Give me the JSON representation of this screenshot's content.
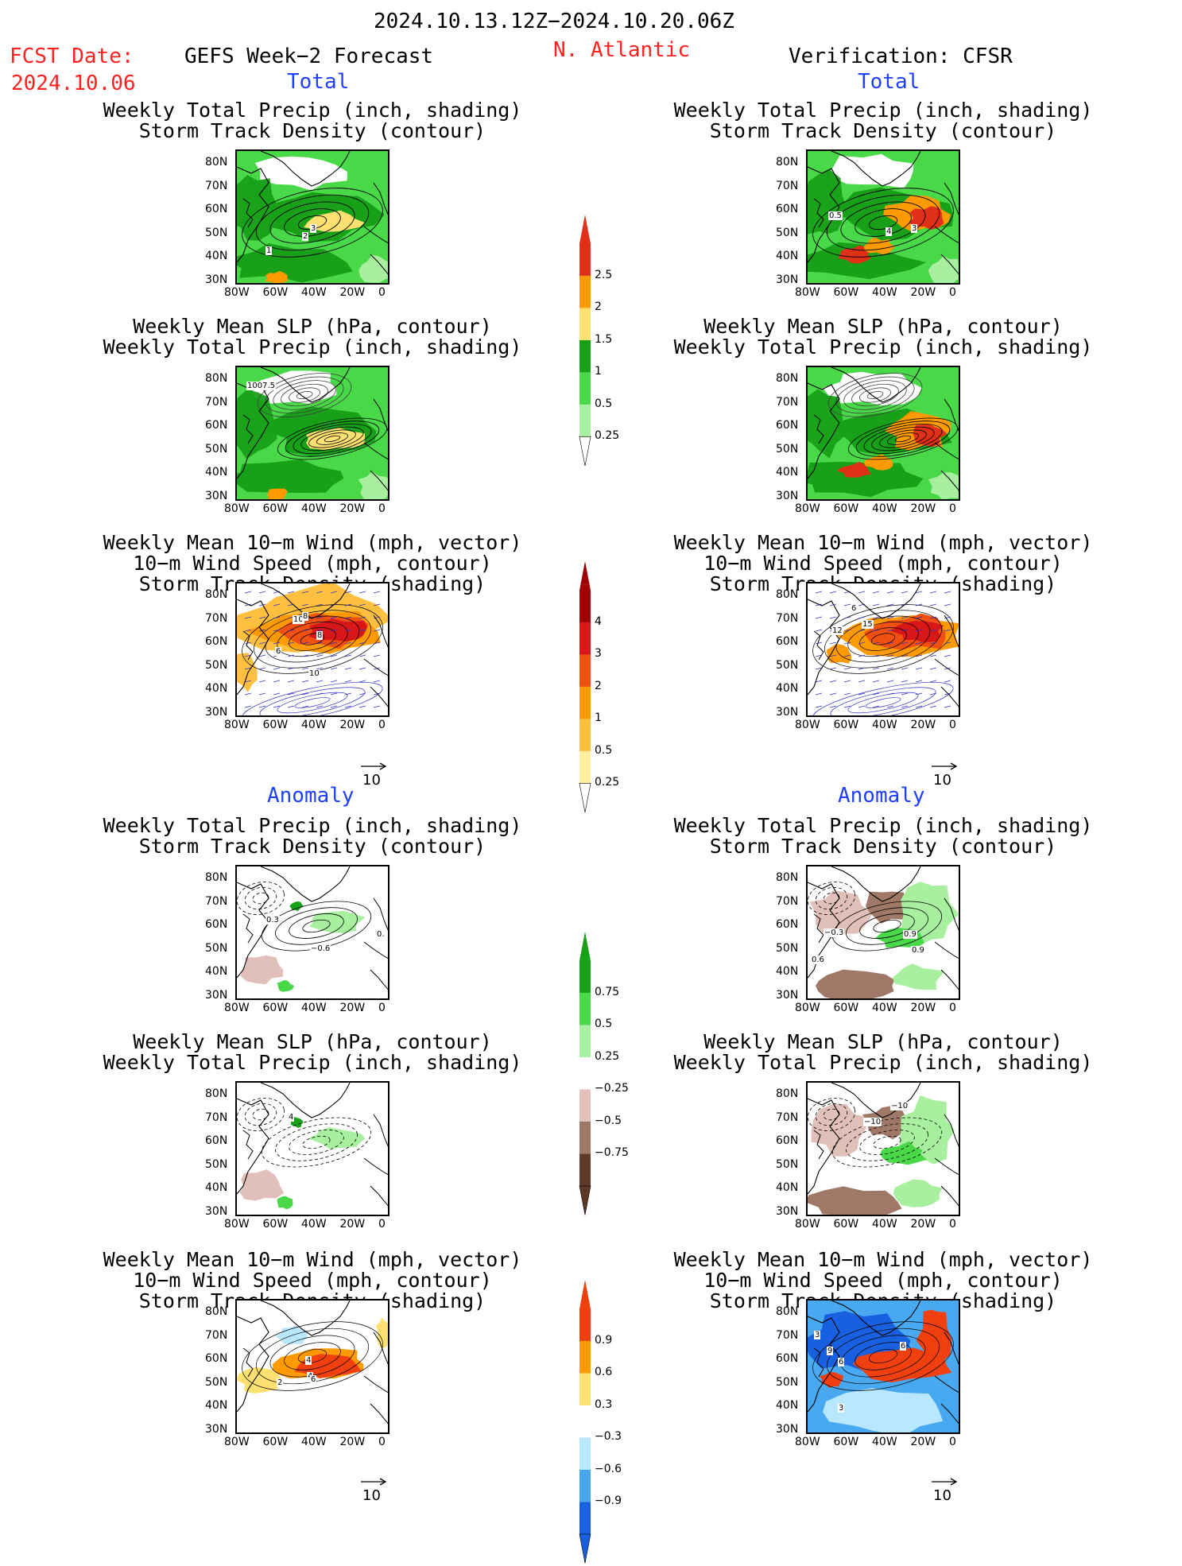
{
  "header": {
    "date_range": "2024.10.13.12Z−2024.10.20.06Z",
    "fcst_label": "FCST Date:",
    "fcst_date": "2024.10.06",
    "model_title": "GEFS Week−2 Forecast",
    "region": "N. Atlantic",
    "verification": "Verification: CFSR"
  },
  "sections": {
    "total": "Total",
    "anomaly": "Anomaly"
  },
  "titles": {
    "precip_track": [
      "Weekly Total Precip (inch, shading)",
      "Storm Track Density (contour)"
    ],
    "slp_precip": [
      "Weekly Mean SLP (hPa, contour)",
      "Weekly Total Precip (inch, shading)"
    ],
    "wind_track": [
      "Weekly Mean 10−m Wind (mph, vector)",
      "10−m Wind Speed (mph, contour)",
      "Storm Track Density (shading)"
    ]
  },
  "axes": {
    "lat_ticks": [
      "80N",
      "70N",
      "60N",
      "50N",
      "40N",
      "30N"
    ],
    "lon_ticks": [
      "80W",
      "60W",
      "40W",
      "20W",
      "0"
    ]
  },
  "vector_ref": "10",
  "colorbars": {
    "precip_total": {
      "labels": [
        "2.5",
        "2",
        "1.5",
        "1",
        "0.5",
        "0.25"
      ],
      "colors": [
        "#e03018",
        "#ff9a00",
        "#ffe070",
        "#18a018",
        "#48d848",
        "#a8f0a0"
      ]
    },
    "storm_total": {
      "labels": [
        "4",
        "3",
        "2",
        "1",
        "0.5",
        "0.25"
      ],
      "colors": [
        "#a00000",
        "#d81818",
        "#f05010",
        "#ff9a00",
        "#ffc040",
        "#fff0a0"
      ]
    },
    "precip_anom": {
      "labels": [
        "0.75",
        "0.5",
        "0.25",
        "−0.25",
        "−0.5",
        "−0.75"
      ],
      "colors": [
        "#18a018",
        "#48d848",
        "#a8f0a0",
        "#ffffff",
        "#e0c0b8",
        "#a07868",
        "#603828"
      ]
    },
    "storm_anom": {
      "labels": [
        "0.9",
        "0.6",
        "0.3",
        "−0.3",
        "−0.6",
        "−0.9"
      ],
      "colors": [
        "#f04010",
        "#ff9a00",
        "#ffe070",
        "#ffffff",
        "#b8e8ff",
        "#48a8f0",
        "#1860e0"
      ]
    }
  },
  "contour_labels": {
    "fc_precip_total": [
      "3",
      "2",
      "1"
    ],
    "fc_slp_total": [
      "1007.5"
    ],
    "fc_wind_total": [
      "10",
      "8",
      "8",
      "6",
      "10"
    ],
    "ob_precip_total": [
      "0.5",
      "4",
      "3"
    ],
    "ob_wind_total": [
      "6",
      "15",
      "12"
    ],
    "fc_precip_anom": [
      "0.3",
      "−0.6",
      "0."
    ],
    "fc_slp_anom": [
      "4"
    ],
    "fc_wind_anom": [
      "4",
      "4",
      "6",
      "2"
    ],
    "ob_precip_anom": [
      "−0.3",
      "0.9",
      "0.9",
      "0.6"
    ],
    "ob_slp_anom": [
      "−10",
      "−10"
    ],
    "ob_wind_anom": [
      "3",
      "9",
      "6",
      "6",
      "3"
    ]
  }
}
